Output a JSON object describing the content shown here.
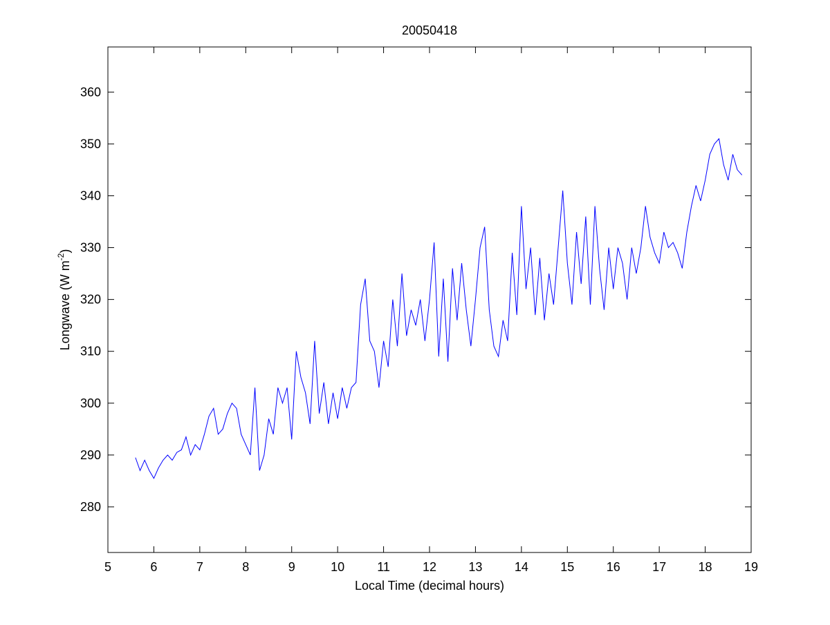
{
  "chart_data": {
    "type": "line",
    "title": "20050418",
    "xlabel": "Local Time (decimal hours)",
    "ylabel": "Longwave (W m",
    "ylabel_sup": "-2",
    "ylabel_end": ")",
    "xlim": [
      5,
      19
    ],
    "xticks": [
      5,
      6,
      7,
      8,
      9,
      10,
      11,
      12,
      13,
      14,
      15,
      16,
      17,
      18,
      19
    ],
    "ylim": [
      271.2,
      368.7
    ],
    "yticks": [
      280,
      290,
      300,
      310,
      320,
      330,
      340,
      350,
      360
    ],
    "grid": false,
    "series": [
      {
        "color": "#0000ff",
        "x": [
          5.6,
          5.7,
          5.8,
          5.9,
          6.0,
          6.1,
          6.2,
          6.3,
          6.4,
          6.5,
          6.6,
          6.7,
          6.8,
          6.9,
          7.0,
          7.1,
          7.2,
          7.3,
          7.4,
          7.5,
          7.6,
          7.7,
          7.8,
          7.9,
          8.0,
          8.1,
          8.2,
          8.3,
          8.4,
          8.5,
          8.6,
          8.7,
          8.8,
          8.9,
          9.0,
          9.1,
          9.2,
          9.3,
          9.4,
          9.5,
          9.6,
          9.7,
          9.8,
          9.9,
          10.0,
          10.1,
          10.2,
          10.3,
          10.4,
          10.5,
          10.6,
          10.7,
          10.8,
          10.9,
          11.0,
          11.1,
          11.2,
          11.3,
          11.4,
          11.5,
          11.6,
          11.7,
          11.8,
          11.9,
          12.0,
          12.1,
          12.2,
          12.3,
          12.4,
          12.5,
          12.6,
          12.7,
          12.8,
          12.9,
          13.0,
          13.1,
          13.2,
          13.3,
          13.4,
          13.5,
          13.6,
          13.7,
          13.8,
          13.9,
          14.0,
          14.1,
          14.2,
          14.3,
          14.4,
          14.5,
          14.6,
          14.7,
          14.8,
          14.9,
          15.0,
          15.1,
          15.2,
          15.3,
          15.4,
          15.5,
          15.6,
          15.7,
          15.8,
          15.9,
          16.0,
          16.1,
          16.2,
          16.3,
          16.4,
          16.5,
          16.6,
          16.7,
          16.8,
          16.9,
          17.0,
          17.1,
          17.2,
          17.3,
          17.4,
          17.5,
          17.6,
          17.7,
          17.8,
          17.9,
          18.0,
          18.1,
          18.2,
          18.3,
          18.4,
          18.5,
          18.6,
          18.7,
          18.8
        ],
        "values": [
          289.5,
          287,
          289,
          287,
          285.5,
          287.5,
          289,
          290,
          289,
          290.5,
          291,
          293.5,
          290,
          292,
          291,
          294,
          297.5,
          299,
          294,
          295,
          298,
          300,
          299,
          294,
          292,
          290,
          303,
          287,
          290,
          297,
          294,
          303,
          300,
          303,
          293,
          310,
          305,
          302,
          296,
          312,
          298,
          304,
          296,
          302,
          297,
          303,
          299,
          303,
          304,
          319,
          324,
          312,
          310,
          303,
          312,
          307,
          320,
          311,
          325,
          313,
          318,
          315,
          320,
          312,
          320,
          331,
          309,
          324,
          308,
          326,
          316,
          327,
          318,
          311,
          320,
          330,
          334,
          318,
          311,
          309,
          316,
          312,
          329,
          317,
          338,
          322,
          330,
          317,
          328,
          316,
          325,
          319,
          330,
          341,
          327,
          319,
          333,
          323,
          336,
          319,
          338,
          326,
          318,
          330,
          322,
          330,
          327,
          320,
          330,
          325,
          330,
          338,
          332,
          329,
          327,
          333,
          330,
          331,
          329,
          326,
          333,
          338,
          342,
          339,
          343,
          348,
          350,
          351,
          346,
          343,
          348,
          345,
          344
        ]
      }
    ]
  }
}
